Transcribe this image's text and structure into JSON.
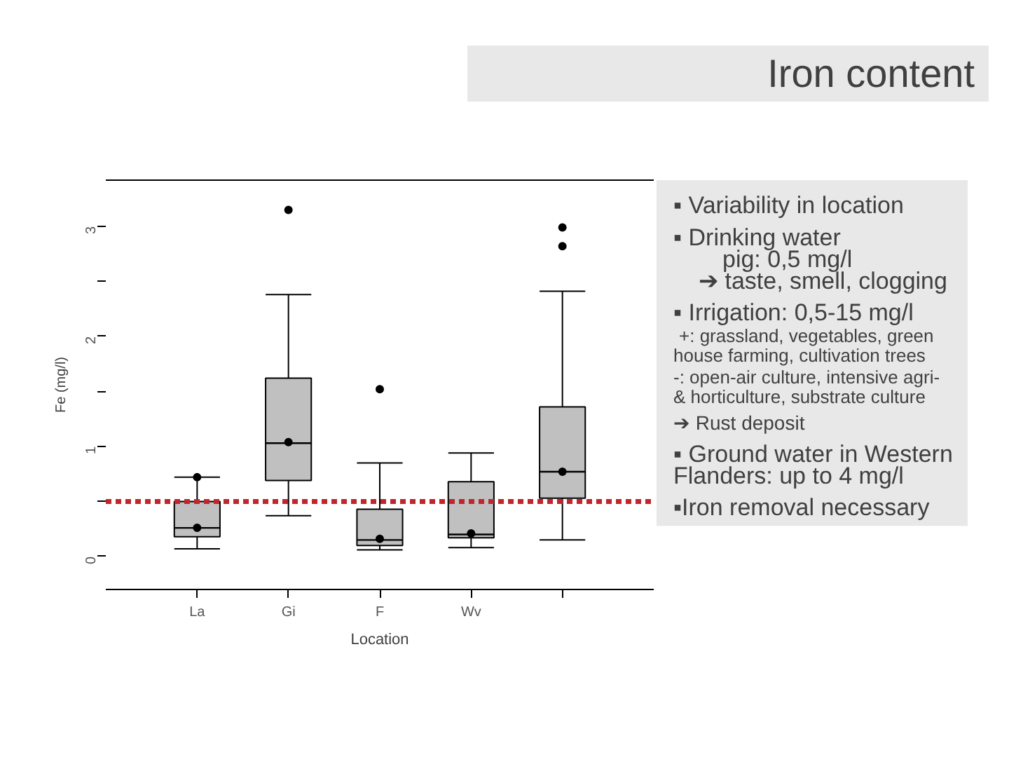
{
  "chart_data": {
    "type": "box",
    "title": "Iron content",
    "xlabel": "Location",
    "ylabel": "Fe (mg/l)",
    "categories": [
      "La",
      "Gi",
      "F",
      "Wv",
      null
    ],
    "series": [
      {
        "color": "#c0c0c0",
        "boxes": [
          {
            "low": 0.07,
            "q1": 0.18,
            "median": 0.26,
            "q3": 0.5,
            "high": 0.72,
            "mean": 0.26,
            "outliers": [
              0.72
            ]
          },
          {
            "low": 0.37,
            "q1": 0.69,
            "median": 1.03,
            "q3": 1.62,
            "high": 2.38,
            "mean": 1.04,
            "outliers": [
              3.15
            ]
          },
          {
            "low": 0.06,
            "q1": 0.1,
            "median": 0.15,
            "q3": 0.43,
            "high": 0.85,
            "mean": 0.16,
            "outliers": [
              1.52
            ]
          },
          {
            "low": 0.08,
            "q1": 0.17,
            "median": 0.2,
            "q3": 0.68,
            "high": 0.94,
            "mean": 0.21
          },
          {
            "low": 0.15,
            "q1": 0.53,
            "median": 0.77,
            "q3": 1.36,
            "high": 2.41,
            "mean": 0.77,
            "outliers": [
              2.99,
              2.82
            ]
          }
        ]
      }
    ],
    "ylim": [
      -0.3,
      3.42
    ],
    "yticks": [
      0,
      {
        "value": 0.5,
        "label": null
      },
      1,
      {
        "value": 1.5,
        "label": null
      },
      2,
      {
        "value": 2.5,
        "label": null
      },
      3
    ],
    "ref_lines": [
      {
        "axis": "y",
        "value": 0.5,
        "color": "#c0262c",
        "line_style": "dashed"
      }
    ],
    "annotations": [
      "▪ Variability in location",
      "▪ Drinking water",
      "pig: 0,5 mg/l",
      "➔ taste, smell, clogging",
      "▪ Irrigation: 0,5-15 mg/l",
      "+: grassland, vegetables, green",
      "house farming, cultivation trees",
      "-: open-air culture, intensive agri-",
      "& horticulture, substrate culture",
      "➔ Rust deposit",
      "▪ Ground water in Western",
      "Flanders: up to 4 mg/l",
      "▪Iron removal necessary"
    ]
  }
}
